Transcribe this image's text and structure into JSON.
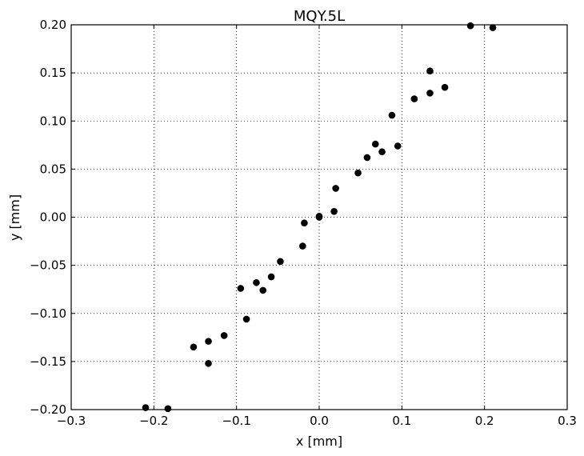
{
  "chart_data": {
    "type": "scatter",
    "title": "MQY.5L",
    "xlabel": "x [mm]",
    "ylabel": "y [mm]",
    "xlim": [
      -0.3,
      0.3
    ],
    "ylim": [
      -0.2,
      0.2
    ],
    "xticks": [
      -0.3,
      -0.2,
      -0.1,
      0.0,
      0.1,
      0.2,
      0.3
    ],
    "yticks": [
      -0.2,
      -0.15,
      -0.1,
      -0.05,
      0.0,
      0.05,
      0.1,
      0.15,
      0.2
    ],
    "xtick_labels": [
      "−0.3",
      "−0.2",
      "−0.1",
      "0.0",
      "0.1",
      "0.2",
      "0.3"
    ],
    "ytick_labels": [
      "−0.20",
      "−0.15",
      "−0.10",
      "−0.05",
      "0.00",
      "0.05",
      "0.10",
      "0.15",
      "0.20"
    ],
    "grid": true,
    "marker_color": "#000000",
    "points": [
      {
        "x": -0.21,
        "y": -0.198
      },
      {
        "x": -0.183,
        "y": -0.199
      },
      {
        "x": -0.152,
        "y": -0.135
      },
      {
        "x": -0.134,
        "y": -0.152
      },
      {
        "x": -0.134,
        "y": -0.129
      },
      {
        "x": -0.115,
        "y": -0.123
      },
      {
        "x": -0.095,
        "y": -0.074
      },
      {
        "x": -0.088,
        "y": -0.106
      },
      {
        "x": -0.076,
        "y": -0.068
      },
      {
        "x": -0.068,
        "y": -0.076
      },
      {
        "x": -0.058,
        "y": -0.062
      },
      {
        "x": -0.047,
        "y": -0.046
      },
      {
        "x": -0.02,
        "y": -0.03
      },
      {
        "x": -0.018,
        "y": -0.006
      },
      {
        "x": 0.0,
        "y": 0.0
      },
      {
        "x": 0.0,
        "y": 0.001
      },
      {
        "x": 0.018,
        "y": 0.006
      },
      {
        "x": 0.02,
        "y": 0.03
      },
      {
        "x": 0.047,
        "y": 0.046
      },
      {
        "x": 0.058,
        "y": 0.062
      },
      {
        "x": 0.068,
        "y": 0.076
      },
      {
        "x": 0.076,
        "y": 0.068
      },
      {
        "x": 0.088,
        "y": 0.106
      },
      {
        "x": 0.095,
        "y": 0.074
      },
      {
        "x": 0.115,
        "y": 0.123
      },
      {
        "x": 0.134,
        "y": 0.129
      },
      {
        "x": 0.134,
        "y": 0.152
      },
      {
        "x": 0.152,
        "y": 0.135
      },
      {
        "x": 0.183,
        "y": 0.199
      },
      {
        "x": 0.21,
        "y": 0.197
      }
    ]
  }
}
